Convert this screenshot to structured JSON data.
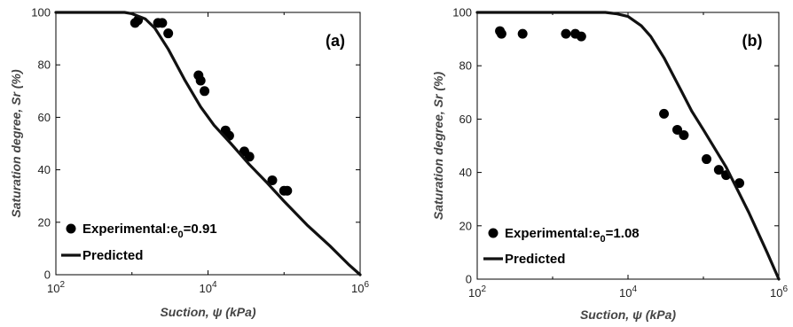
{
  "colors": {
    "series": "#000000",
    "curve": "#111111",
    "axis": "#000000",
    "background": "#ffffff"
  },
  "chart_data": [
    {
      "type": "scatter",
      "panel_label": "(a)",
      "xlabel": "Suction, ψ (kPa)",
      "ylabel": "Saturation degree, Sr (%)",
      "xscale": "log",
      "xlim": [
        100,
        1000000
      ],
      "ylim": [
        0,
        100
      ],
      "xticks": [
        {
          "v": 100,
          "b": "10",
          "e": "2"
        },
        {
          "v": 10000,
          "b": "10",
          "e": "4"
        },
        {
          "v": 1000000,
          "b": "10",
          "e": "6"
        }
      ],
      "yticks": [
        "0",
        "20",
        "40",
        "60",
        "80",
        "100"
      ],
      "legend": {
        "placement": "bottom-left",
        "exp_prefix": "Experimental:e",
        "exp_sub": "0",
        "exp_suffix": "=0.91",
        "pred": "Predicted"
      },
      "series": [
        {
          "name": "Experimental:e0=0.91",
          "kind": "points",
          "x": [
            1100,
            1200,
            2200,
            2500,
            3000,
            7500,
            8000,
            9000,
            17000,
            19000,
            30000,
            35000,
            70000,
            100000,
            110000
          ],
          "y": [
            96,
            97,
            96,
            96,
            92,
            76,
            74,
            70,
            55,
            53,
            47,
            45,
            36,
            32,
            32
          ]
        },
        {
          "name": "Predicted",
          "kind": "line",
          "x": [
            100,
            500,
            800,
            1000,
            1500,
            2000,
            3000,
            5000,
            8000,
            12000,
            20000,
            35000,
            60000,
            100000,
            200000,
            400000,
            700000,
            1000000
          ],
          "y": [
            100,
            100,
            100,
            99.5,
            97.5,
            94,
            86,
            74,
            64,
            57,
            50,
            42,
            35,
            28,
            19,
            11,
            4,
            0
          ]
        }
      ]
    },
    {
      "type": "scatter",
      "panel_label": "(b)",
      "xlabel": "Suction, ψ (kPa)",
      "ylabel": "Saturation degree, Sr (%)",
      "xscale": "log",
      "xlim": [
        100,
        1000000
      ],
      "ylim": [
        0,
        100
      ],
      "xticks": [
        {
          "v": 100,
          "b": "10",
          "e": "2"
        },
        {
          "v": 10000,
          "b": "10",
          "e": "4"
        },
        {
          "v": 1000000,
          "b": "10",
          "e": "6"
        }
      ],
      "yticks": [
        "0",
        "20",
        "40",
        "60",
        "80",
        "100"
      ],
      "legend": {
        "placement": "bottom-left",
        "exp_prefix": "Experimental:e",
        "exp_sub": "0",
        "exp_suffix": "=1.08",
        "pred": "Predicted"
      },
      "series": [
        {
          "name": "Experimental:e0=1.08",
          "kind": "points",
          "x": [
            200,
            210,
            400,
            1500,
            2000,
            2400,
            30000,
            45000,
            55000,
            110000,
            160000,
            200000,
            300000
          ],
          "y": [
            93,
            92,
            92,
            92,
            92,
            91,
            62,
            56,
            54,
            45,
            41,
            39,
            36
          ]
        },
        {
          "name": "Predicted",
          "kind": "line",
          "x": [
            100,
            1000,
            3000,
            5000,
            7000,
            10000,
            15000,
            20000,
            30000,
            50000,
            70000,
            100000,
            200000,
            400000,
            700000,
            1000000
          ],
          "y": [
            100,
            100,
            100,
            100,
            99.5,
            98.5,
            95,
            91,
            83,
            71,
            63,
            56,
            42,
            25,
            10,
            0
          ]
        }
      ]
    }
  ]
}
